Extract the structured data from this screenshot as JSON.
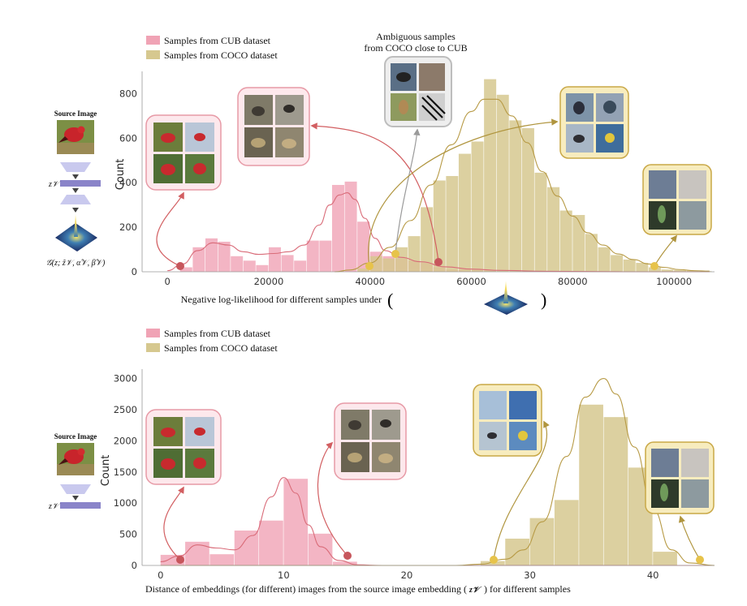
{
  "colors": {
    "cub": "#f0a3b5",
    "cub_line": "#d96b78",
    "cub_marker": "#c7565c",
    "coco": "#d6c88f",
    "coco_line": "#b79a45",
    "coco_marker": "#e7c34a",
    "ambiguous_frame": "#cccccc",
    "ambiguous_arrow": "#9a9a9a",
    "encoder_light": "#c9c9ee",
    "encoder_bar": "#8a84c9"
  },
  "source_image": {
    "label": "Source Image",
    "latent_label": "z𝒱",
    "gaussian_label": "𝒢(z; ẑ𝒱, α̂𝒱, β̂𝒱)"
  },
  "chart_data": [
    {
      "type": "bar",
      "title": "",
      "xlabel": "Negative log-likelihood for different samples under",
      "xlabel_open": "(",
      "xlabel_close": ")",
      "ylabel": "Count",
      "xlim": [
        -5000,
        108000
      ],
      "ylim": [
        0,
        900
      ],
      "xticks": [
        0,
        20000,
        40000,
        60000,
        80000,
        100000
      ],
      "xtick_labels": [
        "0",
        "20000",
        "40000",
        "60000",
        "80000",
        "100000"
      ],
      "yticks": [
        0,
        200,
        400,
        600,
        800
      ],
      "ytick_labels": [
        "0",
        "200",
        "400",
        "600",
        "800"
      ],
      "bin_width": 2500,
      "legend": [
        "Samples from CUB dataset",
        "Samples from COCO dataset"
      ],
      "legend_position": "top-left",
      "series": [
        {
          "name": "Samples from CUB dataset",
          "bin_starts": [
            2500,
            5000,
            7500,
            10000,
            12500,
            15000,
            17500,
            20000,
            22500,
            25000,
            27500,
            30000,
            32500,
            35000,
            37500,
            40000,
            42500,
            45000,
            47500,
            50000,
            52500,
            55000,
            57500,
            60000,
            62500
          ],
          "values": [
            20,
            110,
            150,
            135,
            70,
            50,
            30,
            110,
            75,
            50,
            140,
            140,
            390,
            405,
            225,
            90,
            70,
            60,
            50,
            40,
            20,
            10,
            12,
            12,
            8
          ],
          "kde": [
            [
              0,
              5
            ],
            [
              3000,
              35
            ],
            [
              6000,
              95
            ],
            [
              9000,
              130
            ],
            [
              12000,
              120
            ],
            [
              15000,
              90
            ],
            [
              18000,
              78
            ],
            [
              21000,
              82
            ],
            [
              24000,
              90
            ],
            [
              27000,
              120
            ],
            [
              30000,
              210
            ],
            [
              32000,
              300
            ],
            [
              34000,
              345
            ],
            [
              35500,
              355
            ],
            [
              37000,
              325
            ],
            [
              39000,
              240
            ],
            [
              41000,
              150
            ],
            [
              43000,
              95
            ],
            [
              46000,
              65
            ],
            [
              50000,
              45
            ],
            [
              55000,
              22
            ],
            [
              60000,
              12
            ],
            [
              66000,
              6
            ],
            [
              75000,
              2
            ],
            [
              90000,
              0
            ],
            [
              107000,
              0
            ]
          ]
        },
        {
          "name": "Samples from COCO dataset",
          "bin_starts": [
            37500,
            40000,
            42500,
            45000,
            47500,
            50000,
            52500,
            55000,
            57500,
            60000,
            62500,
            65000,
            67500,
            70000,
            72500,
            75000,
            77500,
            80000,
            82500,
            85000,
            87500,
            90000,
            92500,
            95000,
            97500,
            100000,
            102500,
            105000
          ],
          "values": [
            15,
            70,
            60,
            110,
            160,
            290,
            410,
            430,
            530,
            585,
            865,
            795,
            680,
            645,
            445,
            380,
            275,
            255,
            170,
            110,
            75,
            55,
            40,
            20,
            10,
            8,
            5,
            3
          ],
          "kde": [
            [
              33000,
              0
            ],
            [
              36000,
              8
            ],
            [
              40000,
              40
            ],
            [
              44000,
              110
            ],
            [
              48000,
              230
            ],
            [
              52000,
              390
            ],
            [
              56000,
              570
            ],
            [
              60000,
              720
            ],
            [
              62500,
              775
            ],
            [
              65000,
              775
            ],
            [
              68000,
              700
            ],
            [
              71000,
              580
            ],
            [
              74000,
              450
            ],
            [
              77000,
              340
            ],
            [
              80000,
              250
            ],
            [
              83000,
              175
            ],
            [
              86000,
              120
            ],
            [
              89000,
              80
            ],
            [
              92000,
              55
            ],
            [
              95000,
              35
            ],
            [
              98000,
              20
            ],
            [
              101000,
              10
            ],
            [
              104000,
              5
            ],
            [
              107000,
              3
            ]
          ]
        }
      ],
      "annotations": [
        "Ambiguous samples",
        "from COCO close to CUB"
      ]
    },
    {
      "type": "bar",
      "title": "",
      "xlabel": "Distance of embeddings (for different) images from the source image embedding (",
      "xlabel_symbol": "z𝒱",
      "xlabel_close": ") for different samples",
      "ylabel": "Count",
      "xlim": [
        -1.5,
        45
      ],
      "ylim": [
        0,
        3150
      ],
      "xticks": [
        0,
        10,
        20,
        30,
        40
      ],
      "xtick_labels": [
        "0",
        "10",
        "20",
        "30",
        "40"
      ],
      "yticks": [
        0,
        500,
        1000,
        1500,
        2000,
        2500,
        3000
      ],
      "ytick_labels": [
        "0",
        "500",
        "1000",
        "1500",
        "2000",
        "2500",
        "3000"
      ],
      "bin_width": 2,
      "legend": [
        "Samples from CUB dataset",
        "Samples from COCO dataset"
      ],
      "legend_position": "top-left",
      "series": [
        {
          "name": "Samples from CUB dataset",
          "bin_starts": [
            0,
            2,
            4,
            6,
            8,
            10,
            12,
            14
          ],
          "values": [
            170,
            380,
            180,
            560,
            720,
            1390,
            510,
            60
          ],
          "kde": [
            [
              0,
              60
            ],
            [
              1.5,
              150
            ],
            [
              3,
              330
            ],
            [
              4.5,
              280
            ],
            [
              6,
              250
            ],
            [
              7.5,
              480
            ],
            [
              9,
              1100
            ],
            [
              10,
              1410
            ],
            [
              11,
              1160
            ],
            [
              12,
              650
            ],
            [
              13,
              300
            ],
            [
              14.5,
              80
            ],
            [
              16,
              10
            ],
            [
              18,
              0
            ],
            [
              45,
              0
            ]
          ]
        },
        {
          "name": "Samples from COCO dataset",
          "bin_starts": [
            26,
            28,
            30,
            32,
            34,
            36,
            38,
            40
          ],
          "values": [
            70,
            430,
            760,
            1050,
            2580,
            2380,
            1570,
            220
          ],
          "kde": [
            [
              0,
              0
            ],
            [
              24,
              0
            ],
            [
              26,
              20
            ],
            [
              28,
              100
            ],
            [
              29.5,
              250
            ],
            [
              31,
              700
            ],
            [
              33,
              1750
            ],
            [
              34.5,
              2700
            ],
            [
              36,
              3000
            ],
            [
              37,
              2750
            ],
            [
              38.5,
              1900
            ],
            [
              40,
              900
            ],
            [
              41.5,
              250
            ],
            [
              43,
              40
            ],
            [
              45,
              0
            ]
          ]
        }
      ]
    }
  ]
}
